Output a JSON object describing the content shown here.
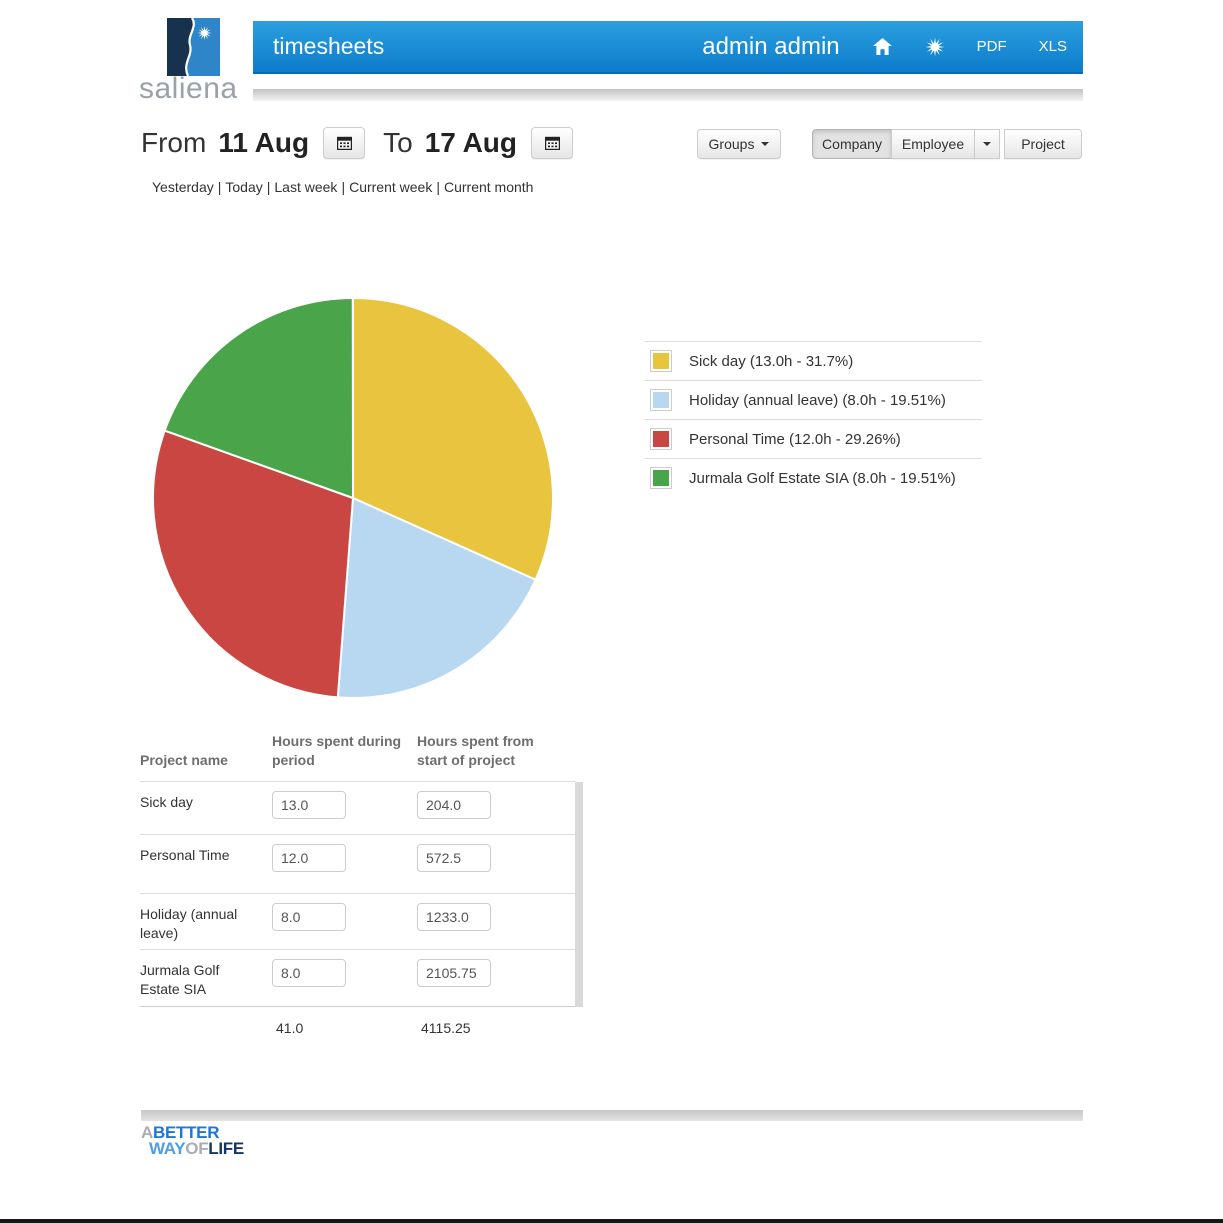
{
  "brand": {
    "name": "saliena",
    "footer": {
      "a": "A",
      "better": "BETTER",
      "way": "WAY",
      "of": "OF",
      "life": "LIFE"
    }
  },
  "header": {
    "title": "timesheets",
    "user": "admin admin",
    "pdf": "PDF",
    "xls": "XLS"
  },
  "filters": {
    "from_label": "From",
    "from_value": "11 Aug",
    "to_label": "To",
    "to_value": "17 Aug",
    "quick_links": [
      "Yesterday",
      "Today",
      "Last week",
      "Current week",
      "Current month"
    ],
    "groups_label": "Groups",
    "company_label": "Company",
    "employee_label": "Employee",
    "project_label": "Project",
    "active_view": "Company"
  },
  "chart_data": {
    "type": "pie",
    "unit": "hours",
    "direction": "clockwise",
    "start_angle_deg": 0,
    "legend_position": "right",
    "slices": [
      {
        "label": "Sick day",
        "hours": 13.0,
        "percent": 31.7,
        "color": "#e9c43e",
        "legend": "Sick day (13.0h - 31.7%)"
      },
      {
        "label": "Holiday (annual leave)",
        "hours": 8.0,
        "percent": 19.51,
        "color": "#b8d8f2",
        "legend": "Holiday (annual leave) (8.0h - 19.51%)"
      },
      {
        "label": "Personal Time",
        "hours": 12.0,
        "percent": 29.26,
        "color": "#c94642",
        "legend": "Personal Time (12.0h - 29.26%)"
      },
      {
        "label": "Jurmala Golf Estate SIA",
        "hours": 8.0,
        "percent": 19.51,
        "color": "#4aa449",
        "legend": "Jurmala Golf Estate SIA (8.0h - 19.51%)"
      }
    ]
  },
  "table": {
    "headers": [
      "Project name",
      "Hours spent during period",
      "Hours spent from start of project"
    ],
    "rows": [
      {
        "name": "Sick day",
        "period": "13.0",
        "total": "204.0"
      },
      {
        "name": "Personal Time",
        "period": "12.0",
        "total": "572.5"
      },
      {
        "name": "Holiday (annual leave)",
        "period": "8.0",
        "total": "1233.0"
      },
      {
        "name": "Jurmala Golf Estate SIA",
        "period": "8.0",
        "total": "2105.75"
      }
    ],
    "totals": {
      "period": "41.0",
      "total": "4115.25"
    }
  }
}
